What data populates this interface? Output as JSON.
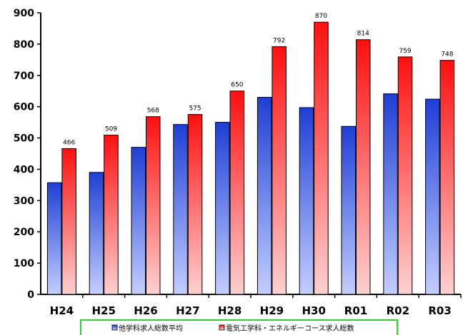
{
  "chart_data": {
    "type": "bar",
    "title": "",
    "xlabel": "",
    "ylabel": "",
    "categories": [
      "H24",
      "H25",
      "H26",
      "H27",
      "H28",
      "H29",
      "H30",
      "R01",
      "R02",
      "R03"
    ],
    "ylim": [
      0,
      900
    ],
    "yticks": [
      0,
      100,
      200,
      300,
      400,
      500,
      600,
      700,
      800,
      900
    ],
    "grid": false,
    "legend_position": "bottom",
    "series": [
      {
        "name": "他学科求人総数平均",
        "values": [
          357,
          390,
          470,
          543,
          550,
          630,
          597,
          537,
          641,
          624
        ],
        "color_top": "#1f3fd6",
        "color_bottom": "#c3ceff",
        "data_labels": false
      },
      {
        "name": "電気工学科・エネルギーコース求人総数",
        "values": [
          466,
          509,
          568,
          575,
          650,
          792,
          870,
          814,
          759,
          748
        ],
        "color_top": "#ff1010",
        "color_bottom": "#ffd0d0",
        "data_labels": true
      }
    ],
    "colors": {
      "legend_border": "#33cc33",
      "axis": "#000000"
    }
  }
}
